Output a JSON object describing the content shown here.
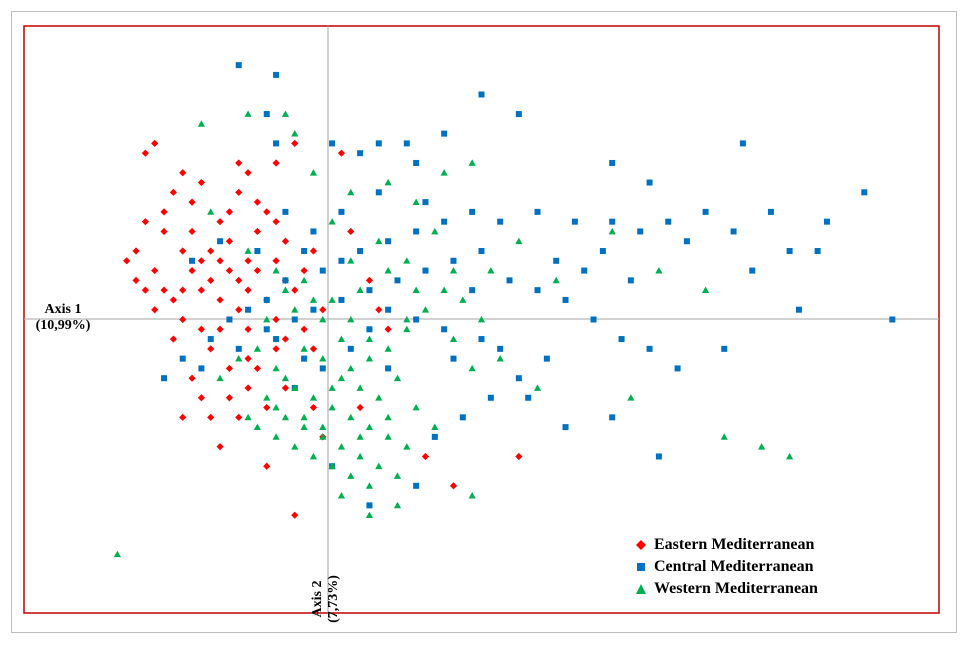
{
  "chart_data": {
    "type": "scatter",
    "title": "",
    "xlabel": "Axis 1\n(10,99%)",
    "ylabel": "Axis 2\n(7,73%)",
    "xlim": [
      -3.3,
      6.5
    ],
    "ylim": [
      -3.0,
      3.0
    ],
    "grid": false,
    "legend_position": "bottom-right",
    "series": [
      {
        "name": "Eastern Mediterranean",
        "marker": "diamond",
        "color": "#ff0000",
        "points": [
          [
            -2.0,
            1.7
          ],
          [
            -1.9,
            1.8
          ],
          [
            -1.7,
            1.3
          ],
          [
            -1.6,
            1.5
          ],
          [
            -1.8,
            1.1
          ],
          [
            -1.5,
            0.9
          ],
          [
            -2.1,
            0.7
          ],
          [
            -2.2,
            0.6
          ],
          [
            -2.1,
            0.4
          ],
          [
            -1.9,
            0.5
          ],
          [
            -1.8,
            0.3
          ],
          [
            -1.7,
            0.2
          ],
          [
            -1.6,
            0.0
          ],
          [
            -1.5,
            0.5
          ],
          [
            -1.4,
            0.3
          ],
          [
            -1.3,
            0.7
          ],
          [
            -1.2,
            1.0
          ],
          [
            -1.1,
            0.8
          ],
          [
            -1.0,
            1.3
          ],
          [
            -0.9,
            1.5
          ],
          [
            -0.8,
            0.9
          ],
          [
            -0.7,
            1.1
          ],
          [
            -0.6,
            0.6
          ],
          [
            -0.5,
            0.4
          ],
          [
            -1.2,
            0.2
          ],
          [
            -1.0,
            0.1
          ],
          [
            -0.9,
            -0.1
          ],
          [
            -1.3,
            -0.3
          ],
          [
            -1.5,
            -0.6
          ],
          [
            -1.6,
            -1.0
          ],
          [
            -1.4,
            -0.8
          ],
          [
            -1.2,
            -1.3
          ],
          [
            -1.0,
            -1.0
          ],
          [
            -0.8,
            -0.5
          ],
          [
            -0.6,
            -0.3
          ],
          [
            -0.5,
            -0.7
          ],
          [
            -0.7,
            -0.9
          ],
          [
            -1.1,
            -0.5
          ],
          [
            -1.4,
            -0.1
          ],
          [
            -1.7,
            -0.2
          ],
          [
            -1.9,
            0.1
          ],
          [
            -2.0,
            0.3
          ],
          [
            -1.3,
            0.4
          ],
          [
            -1.1,
            0.5
          ],
          [
            -0.9,
            0.3
          ],
          [
            -0.7,
            0.2
          ],
          [
            -0.6,
            0.0
          ],
          [
            -0.4,
            0.3
          ],
          [
            -0.3,
            0.5
          ],
          [
            -0.2,
            0.7
          ],
          [
            -0.4,
            1.8
          ],
          [
            -0.6,
            1.6
          ],
          [
            -1.0,
            1.6
          ],
          [
            -1.4,
            1.4
          ],
          [
            -1.8,
            0.9
          ],
          [
            -2.0,
            1.0
          ],
          [
            -0.8,
            0.5
          ],
          [
            -0.5,
            0.8
          ],
          [
            -1.2,
            -0.1
          ],
          [
            -0.9,
            -0.4
          ],
          [
            -1.3,
            -1.0
          ],
          [
            -0.7,
            -1.5
          ],
          [
            -0.4,
            -2.0
          ],
          [
            -0.2,
            -0.3
          ],
          [
            -0.1,
            0.1
          ],
          [
            0.1,
            1.7
          ],
          [
            0.2,
            0.9
          ],
          [
            0.4,
            0.4
          ],
          [
            0.5,
            0.1
          ],
          [
            0.6,
            -0.1
          ],
          [
            0.3,
            -0.9
          ],
          [
            -0.2,
            -0.9
          ],
          [
            -0.1,
            -1.2
          ],
          [
            1.0,
            -1.4
          ],
          [
            1.3,
            -1.7
          ],
          [
            2.0,
            -1.4
          ],
          [
            -0.3,
            -0.1
          ],
          [
            -1.6,
            0.7
          ],
          [
            -1.5,
            1.2
          ],
          [
            -1.1,
            1.1
          ],
          [
            -0.8,
            1.2
          ],
          [
            -0.6,
            1.0
          ],
          [
            -1.2,
            0.6
          ],
          [
            -1.0,
            0.4
          ],
          [
            -0.9,
            0.6
          ],
          [
            -1.4,
            0.6
          ],
          [
            -1.6,
            0.3
          ],
          [
            -1.1,
            -0.8
          ],
          [
            -0.9,
            -0.7
          ],
          [
            -0.5,
            -0.2
          ]
        ]
      },
      {
        "name": "Central Mediterranean",
        "marker": "square",
        "color": "#0070c0",
        "points": [
          [
            -1.0,
            2.6
          ],
          [
            -0.6,
            2.5
          ],
          [
            -0.7,
            2.1
          ],
          [
            -0.6,
            1.8
          ],
          [
            0.0,
            1.8
          ],
          [
            0.5,
            1.8
          ],
          [
            0.8,
            1.8
          ],
          [
            0.3,
            1.7
          ],
          [
            0.9,
            1.6
          ],
          [
            1.2,
            1.9
          ],
          [
            1.6,
            2.3
          ],
          [
            2.0,
            2.1
          ],
          [
            3.0,
            1.6
          ],
          [
            3.4,
            1.4
          ],
          [
            4.4,
            1.8
          ],
          [
            4.7,
            1.1
          ],
          [
            4.0,
            1.1
          ],
          [
            3.6,
            1.0
          ],
          [
            3.3,
            0.9
          ],
          [
            3.0,
            1.0
          ],
          [
            2.6,
            1.0
          ],
          [
            2.2,
            1.1
          ],
          [
            1.8,
            1.0
          ],
          [
            1.5,
            1.1
          ],
          [
            1.2,
            1.0
          ],
          [
            0.9,
            0.9
          ],
          [
            0.6,
            0.8
          ],
          [
            0.3,
            0.7
          ],
          [
            0.1,
            0.6
          ],
          [
            -0.1,
            0.5
          ],
          [
            -0.3,
            0.7
          ],
          [
            -0.5,
            0.4
          ],
          [
            -0.7,
            0.2
          ],
          [
            -0.9,
            0.1
          ],
          [
            -1.1,
            0.0
          ],
          [
            -1.3,
            -0.2
          ],
          [
            -1.6,
            -0.4
          ],
          [
            -1.8,
            -0.6
          ],
          [
            -1.4,
            -0.5
          ],
          [
            -1.0,
            -0.3
          ],
          [
            -0.7,
            -0.1
          ],
          [
            -0.4,
            0.0
          ],
          [
            -0.2,
            0.1
          ],
          [
            0.1,
            0.2
          ],
          [
            0.4,
            0.3
          ],
          [
            0.7,
            0.4
          ],
          [
            1.0,
            0.5
          ],
          [
            1.3,
            0.6
          ],
          [
            1.6,
            0.7
          ],
          [
            1.9,
            0.4
          ],
          [
            2.2,
            0.3
          ],
          [
            2.5,
            0.2
          ],
          [
            2.8,
            0.0
          ],
          [
            3.1,
            -0.2
          ],
          [
            3.4,
            -0.3
          ],
          [
            3.7,
            -0.5
          ],
          [
            2.3,
            -0.4
          ],
          [
            2.0,
            -0.6
          ],
          [
            1.7,
            -0.8
          ],
          [
            1.4,
            -1.0
          ],
          [
            1.1,
            -1.2
          ],
          [
            2.5,
            -1.1
          ],
          [
            3.0,
            -1.0
          ],
          [
            3.5,
            -1.4
          ],
          [
            1.6,
            -0.2
          ],
          [
            1.2,
            -0.1
          ],
          [
            0.9,
            0.0
          ],
          [
            0.6,
            0.1
          ],
          [
            0.4,
            -0.1
          ],
          [
            0.2,
            -0.3
          ],
          [
            -0.1,
            -0.5
          ],
          [
            -0.4,
            -0.7
          ],
          [
            0.0,
            -1.5
          ],
          [
            0.4,
            -1.9
          ],
          [
            0.9,
            -1.7
          ],
          [
            6.0,
            0.0
          ],
          [
            5.0,
            0.1
          ],
          [
            4.2,
            -0.3
          ],
          [
            4.5,
            0.5
          ],
          [
            5.2,
            0.7
          ],
          [
            5.7,
            1.3
          ],
          [
            5.3,
            1.0
          ],
          [
            4.9,
            0.7
          ],
          [
            2.4,
            0.6
          ],
          [
            2.7,
            0.5
          ],
          [
            3.2,
            0.4
          ],
          [
            1.0,
            1.2
          ],
          [
            0.5,
            1.3
          ],
          [
            0.1,
            1.1
          ],
          [
            -0.2,
            0.9
          ],
          [
            -0.5,
            1.1
          ],
          [
            -0.8,
            0.7
          ],
          [
            -1.2,
            0.8
          ],
          [
            -1.5,
            0.6
          ],
          [
            0.6,
            -0.5
          ],
          [
            1.3,
            -0.4
          ],
          [
            1.8,
            -0.3
          ],
          [
            2.1,
            -0.8
          ],
          [
            -0.3,
            -0.4
          ],
          [
            -0.6,
            -0.2
          ],
          [
            1.5,
            0.3
          ],
          [
            2.9,
            0.7
          ],
          [
            3.8,
            0.8
          ],
          [
            4.3,
            0.9
          ]
        ]
      },
      {
        "name": "Western Mediterranean",
        "marker": "triangle",
        "color": "#00b050",
        "points": [
          [
            -1.4,
            2.0
          ],
          [
            -0.9,
            2.1
          ],
          [
            -0.5,
            2.1
          ],
          [
            -0.4,
            1.9
          ],
          [
            -0.2,
            1.5
          ],
          [
            0.2,
            1.3
          ],
          [
            0.6,
            1.4
          ],
          [
            0.9,
            1.2
          ],
          [
            1.2,
            1.5
          ],
          [
            1.5,
            1.6
          ],
          [
            -1.3,
            1.1
          ],
          [
            -0.9,
            0.7
          ],
          [
            -0.6,
            0.5
          ],
          [
            -0.3,
            0.4
          ],
          [
            0.0,
            0.2
          ],
          [
            0.2,
            0.0
          ],
          [
            0.4,
            -0.2
          ],
          [
            0.6,
            -0.3
          ],
          [
            0.8,
            -0.1
          ],
          [
            1.0,
            0.1
          ],
          [
            1.2,
            0.3
          ],
          [
            1.4,
            0.2
          ],
          [
            1.6,
            0.0
          ],
          [
            -0.8,
            -0.3
          ],
          [
            -0.6,
            -0.5
          ],
          [
            -0.4,
            -0.7
          ],
          [
            -0.2,
            -0.8
          ],
          [
            0.0,
            -0.9
          ],
          [
            0.2,
            -1.0
          ],
          [
            0.4,
            -1.1
          ],
          [
            0.6,
            -1.2
          ],
          [
            0.8,
            -1.3
          ],
          [
            -0.5,
            -1.0
          ],
          [
            -0.3,
            -1.1
          ],
          [
            -0.1,
            -1.2
          ],
          [
            0.1,
            -1.3
          ],
          [
            0.3,
            -1.4
          ],
          [
            0.5,
            -1.5
          ],
          [
            -0.8,
            -1.1
          ],
          [
            -0.6,
            -1.2
          ],
          [
            -0.4,
            -1.3
          ],
          [
            -0.2,
            -1.4
          ],
          [
            0.0,
            -1.5
          ],
          [
            0.2,
            -1.6
          ],
          [
            0.4,
            -1.7
          ],
          [
            0.7,
            -1.6
          ],
          [
            -1.2,
            -0.6
          ],
          [
            -1.0,
            -0.4
          ],
          [
            -0.7,
            -0.8
          ],
          [
            -0.5,
            -0.6
          ],
          [
            -0.3,
            -0.3
          ],
          [
            -0.1,
            -0.4
          ],
          [
            0.1,
            -0.6
          ],
          [
            0.3,
            -0.7
          ],
          [
            0.5,
            -0.8
          ],
          [
            0.7,
            -0.6
          ],
          [
            0.9,
            -0.9
          ],
          [
            1.1,
            -1.1
          ],
          [
            0.2,
            0.6
          ],
          [
            0.5,
            0.8
          ],
          [
            0.8,
            0.6
          ],
          [
            1.1,
            0.9
          ],
          [
            1.3,
            0.5
          ],
          [
            0.0,
            1.0
          ],
          [
            -0.2,
            0.2
          ],
          [
            0.3,
            0.3
          ],
          [
            0.6,
            0.5
          ],
          [
            0.9,
            0.3
          ],
          [
            1.5,
            -0.5
          ],
          [
            1.8,
            -0.4
          ],
          [
            2.2,
            -0.7
          ],
          [
            3.0,
            0.9
          ],
          [
            3.5,
            0.5
          ],
          [
            4.0,
            0.3
          ],
          [
            3.2,
            -0.8
          ],
          [
            4.2,
            -1.2
          ],
          [
            4.6,
            -1.3
          ],
          [
            4.9,
            -1.4
          ],
          [
            -2.3,
            -2.4
          ],
          [
            0.1,
            -0.2
          ],
          [
            -0.1,
            0.0
          ],
          [
            -0.4,
            0.1
          ],
          [
            -0.7,
            0.0
          ],
          [
            0.0,
            -0.7
          ],
          [
            0.2,
            -0.5
          ],
          [
            0.4,
            -0.4
          ],
          [
            -0.6,
            -0.9
          ],
          [
            -0.3,
            -1.0
          ],
          [
            -0.1,
            -1.1
          ],
          [
            0.3,
            -1.2
          ],
          [
            0.6,
            -1.0
          ],
          [
            -0.9,
            -1.0
          ],
          [
            0.1,
            -1.8
          ],
          [
            0.4,
            -2.0
          ],
          [
            0.7,
            -1.9
          ],
          [
            1.5,
            -1.8
          ],
          [
            0.8,
            0.0
          ],
          [
            1.3,
            -0.2
          ],
          [
            1.7,
            0.5
          ],
          [
            2.0,
            0.8
          ],
          [
            2.4,
            0.4
          ],
          [
            -0.5,
            0.3
          ]
        ]
      }
    ]
  }
}
